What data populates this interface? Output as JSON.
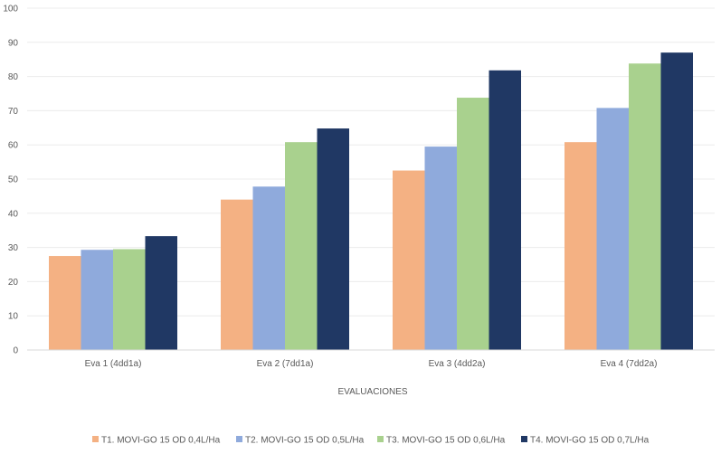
{
  "chart_data": {
    "type": "bar",
    "title": "",
    "xlabel": "EVALUACIONES",
    "ylabel": "",
    "ylim": [
      0,
      100
    ],
    "yticks": [
      0,
      10,
      20,
      30,
      40,
      50,
      60,
      70,
      80,
      90,
      100
    ],
    "categories": [
      "Eva 1 (4dd1a)",
      "Eva 2 (7dd1a)",
      "Eva 3 (4dd2a)",
      "Eva 4 (7dd2a)"
    ],
    "series": [
      {
        "name": "T1. MOVI-GO 15 OD 0,4L/Ha",
        "color": "#f4b183",
        "values": [
          27.5,
          44,
          52.5,
          60.8
        ]
      },
      {
        "name": "T2. MOVI-GO 15 OD 0,5L/Ha",
        "color": "#8faadc",
        "values": [
          29.3,
          47.8,
          59.5,
          70.8
        ]
      },
      {
        "name": "T3. MOVI-GO 15 OD 0,6L/Ha",
        "color": "#a9d18e",
        "values": [
          29.5,
          60.8,
          73.8,
          83.8
        ]
      },
      {
        "name": "T4. MOVI-GO 15 OD 0,7L/Ha",
        "color": "#203864",
        "values": [
          33.3,
          64.8,
          81.8,
          87
        ]
      }
    ],
    "grid": true,
    "legend_position": "bottom"
  }
}
